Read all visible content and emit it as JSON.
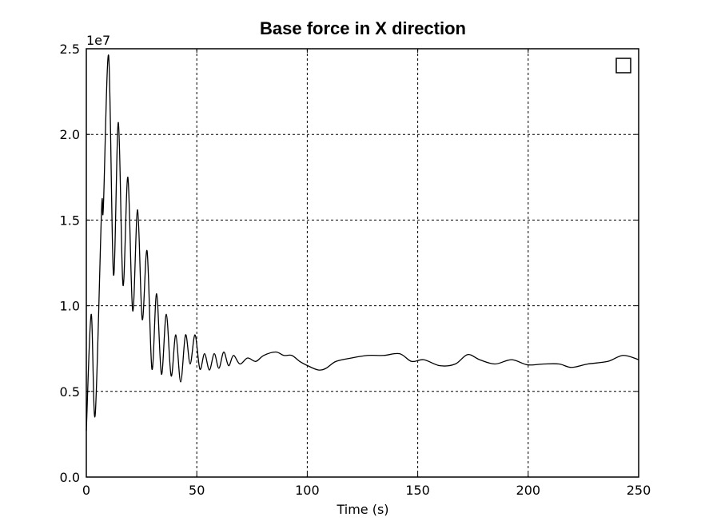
{
  "chart_data": {
    "type": "line",
    "title": "Base force in X direction",
    "xlabel": "Time (s)",
    "y_offset_label": "1e7",
    "x": [
      0,
      2.2,
      4.0,
      6.9,
      7.7,
      10.1,
      12.3,
      14.5,
      16.6,
      18.8,
      21.0,
      23.2,
      25.3,
      27.5,
      29.7,
      31.8,
      34.0,
      36.2,
      38.4,
      40.5,
      42.7,
      44.9,
      47.0,
      49.2,
      51.4,
      53.5,
      55.7,
      57.9,
      60.0,
      62.2,
      64.4,
      66.6,
      69.5,
      73.0,
      76.7,
      80.3,
      85.7,
      89.4,
      93.0,
      96.6,
      100.2,
      105.0,
      108.5,
      113.0,
      120.0,
      127.4,
      134.6,
      141.8,
      147.2,
      152.7,
      160.0,
      167.0,
      172.6,
      178.0,
      185.0,
      192.5,
      199.7,
      207.0,
      214.0,
      219.6,
      227.0,
      236.0,
      243.0,
      250.0
    ],
    "series": [
      {
        "color": "#000000",
        "values": [
          0.27,
          0.95,
          0.36,
          1.56,
          1.57,
          2.46,
          1.18,
          2.07,
          1.12,
          1.75,
          0.97,
          1.56,
          0.92,
          1.32,
          0.63,
          1.07,
          0.6,
          0.95,
          0.59,
          0.83,
          0.555,
          0.83,
          0.66,
          0.83,
          0.63,
          0.72,
          0.625,
          0.72,
          0.635,
          0.73,
          0.65,
          0.71,
          0.66,
          0.695,
          0.675,
          0.71,
          0.73,
          0.71,
          0.71,
          0.675,
          0.65,
          0.625,
          0.635,
          0.675,
          0.695,
          0.71,
          0.71,
          0.72,
          0.675,
          0.685,
          0.65,
          0.66,
          0.715,
          0.685,
          0.66,
          0.685,
          0.655,
          0.66,
          0.66,
          0.64,
          0.66,
          0.675,
          0.71,
          0.685
        ]
      }
    ],
    "xlim": [
      0,
      250
    ],
    "xticks": [
      0,
      50,
      100,
      150,
      200,
      250
    ],
    "ylim": [
      0,
      2.5
    ],
    "yticks": [
      {
        "value": 0,
        "label": "0.0"
      },
      0.5,
      {
        "value": 1,
        "label": "1.0"
      },
      1.5,
      {
        "value": 2,
        "label": "2.0"
      },
      2.5
    ],
    "grid": true,
    "legend_loc": "upper right"
  }
}
